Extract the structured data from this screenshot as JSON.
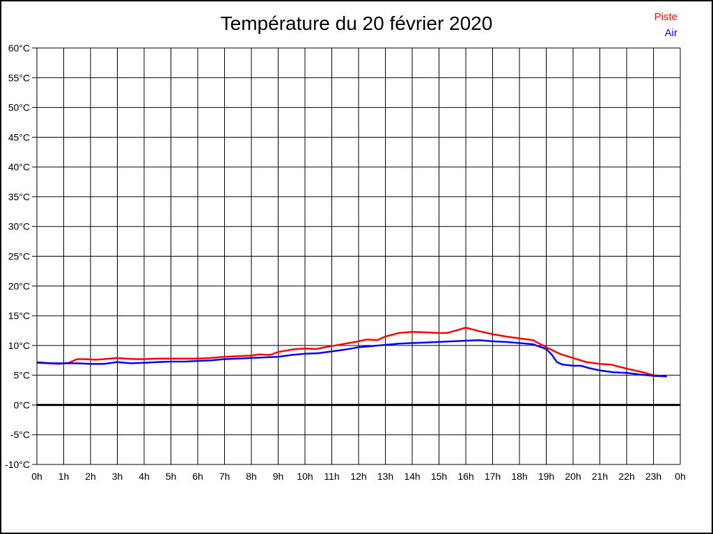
{
  "page": {
    "background": "#ffffff",
    "border_color": "#000000"
  },
  "chart_data": {
    "type": "line",
    "title": "Température du 20 février 2020",
    "xlabel": "",
    "ylabel": "",
    "x_unit": "h",
    "y_unit": "°C",
    "xlim": [
      0,
      24
    ],
    "ylim": [
      -10,
      60
    ],
    "y_tick_step": 5,
    "grid": true,
    "grid_color": "#000000",
    "zero_line_value": 0,
    "legend_position": "top-right",
    "x_tick_labels": [
      "0h",
      "1h",
      "2h",
      "3h",
      "4h",
      "5h",
      "6h",
      "7h",
      "8h",
      "9h",
      "10h",
      "11h",
      "12h",
      "13h",
      "14h",
      "15h",
      "16h",
      "17h",
      "18h",
      "19h",
      "20h",
      "21h",
      "22h",
      "23h",
      "0h"
    ],
    "y_tick_labels": [
      "60°C",
      "55°C",
      "50°C",
      "45°C",
      "40°C",
      "35°C",
      "30°C",
      "25°C",
      "20°C",
      "15°C",
      "10°C",
      "5°C",
      "0°C",
      "-5°C",
      "-10°C"
    ],
    "series": [
      {
        "name": "Piste",
        "color": "#ff0000",
        "points": [
          [
            0,
            7.2
          ],
          [
            0.5,
            7.0
          ],
          [
            0.8,
            6.9
          ],
          [
            1.2,
            7.1
          ],
          [
            1.5,
            7.7
          ],
          [
            1.8,
            7.7
          ],
          [
            2.2,
            7.6
          ],
          [
            2.5,
            7.7
          ],
          [
            3,
            7.9
          ],
          [
            3.3,
            7.8
          ],
          [
            3.7,
            7.7
          ],
          [
            4,
            7.7
          ],
          [
            4.5,
            7.8
          ],
          [
            5,
            7.8
          ],
          [
            5.5,
            7.8
          ],
          [
            6,
            7.8
          ],
          [
            6.5,
            7.9
          ],
          [
            7,
            8.1
          ],
          [
            7.5,
            8.2
          ],
          [
            8,
            8.3
          ],
          [
            8.3,
            8.5
          ],
          [
            8.7,
            8.4
          ],
          [
            9,
            8.9
          ],
          [
            9.5,
            9.3
          ],
          [
            10,
            9.5
          ],
          [
            10.4,
            9.4
          ],
          [
            11,
            9.9
          ],
          [
            11.5,
            10.3
          ],
          [
            12,
            10.7
          ],
          [
            12.3,
            11.0
          ],
          [
            12.7,
            10.9
          ],
          [
            13,
            11.5
          ],
          [
            13.5,
            12.1
          ],
          [
            14,
            12.3
          ],
          [
            14.5,
            12.2
          ],
          [
            15,
            12.1
          ],
          [
            15.3,
            12.1
          ],
          [
            15.7,
            12.6
          ],
          [
            16,
            13.0
          ],
          [
            16.5,
            12.4
          ],
          [
            17,
            11.9
          ],
          [
            17.5,
            11.5
          ],
          [
            18,
            11.2
          ],
          [
            18.5,
            10.9
          ],
          [
            19,
            9.7
          ],
          [
            19.5,
            8.6
          ],
          [
            20,
            7.9
          ],
          [
            20.5,
            7.2
          ],
          [
            21,
            6.9
          ],
          [
            21.4,
            6.8
          ],
          [
            22,
            6.1
          ],
          [
            22.5,
            5.6
          ],
          [
            23,
            5.0
          ],
          [
            23.3,
            4.9
          ]
        ]
      },
      {
        "name": "Air",
        "color": "#0000ff",
        "points": [
          [
            0,
            7.1
          ],
          [
            0.5,
            7.0
          ],
          [
            1,
            7.0
          ],
          [
            1.5,
            7.0
          ],
          [
            2,
            6.9
          ],
          [
            2.5,
            6.9
          ],
          [
            3,
            7.2
          ],
          [
            3.5,
            7.0
          ],
          [
            4,
            7.1
          ],
          [
            4.5,
            7.2
          ],
          [
            5,
            7.3
          ],
          [
            5.5,
            7.3
          ],
          [
            6,
            7.4
          ],
          [
            6.5,
            7.5
          ],
          [
            7,
            7.7
          ],
          [
            7.5,
            7.8
          ],
          [
            8,
            7.9
          ],
          [
            8.5,
            8.0
          ],
          [
            9,
            8.1
          ],
          [
            9.5,
            8.4
          ],
          [
            10,
            8.6
          ],
          [
            10.5,
            8.7
          ],
          [
            11,
            9.0
          ],
          [
            11.5,
            9.3
          ],
          [
            12,
            9.7
          ],
          [
            12.5,
            9.9
          ],
          [
            13,
            10.1
          ],
          [
            13.5,
            10.3
          ],
          [
            14,
            10.4
          ],
          [
            14.5,
            10.5
          ],
          [
            15,
            10.6
          ],
          [
            15.5,
            10.7
          ],
          [
            16,
            10.8
          ],
          [
            16.5,
            10.9
          ],
          [
            17,
            10.7
          ],
          [
            17.5,
            10.6
          ],
          [
            18,
            10.4
          ],
          [
            18.5,
            10.2
          ],
          [
            19,
            9.4
          ],
          [
            19.2,
            8.5
          ],
          [
            19.4,
            7.2
          ],
          [
            19.6,
            6.8
          ],
          [
            20,
            6.6
          ],
          [
            20.3,
            6.6
          ],
          [
            20.6,
            6.2
          ],
          [
            21,
            5.8
          ],
          [
            21.5,
            5.5
          ],
          [
            22,
            5.4
          ],
          [
            22.5,
            5.1
          ],
          [
            23,
            4.9
          ],
          [
            23.5,
            4.8
          ]
        ]
      }
    ]
  }
}
